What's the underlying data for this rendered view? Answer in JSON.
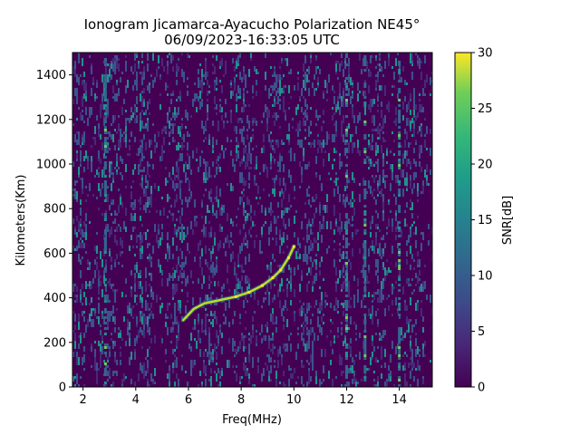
{
  "chart_data": {
    "type": "heatmap",
    "title": "Ionogram Jicamarca-Ayacucho Polarization NE45°",
    "subtitle": "06/09/2023-16:33:05 UTC",
    "xlabel": "Freq(MHz)",
    "ylabel": "Kilometers(Km)",
    "xlim": [
      1.6,
      15.25
    ],
    "ylim": [
      0,
      1500
    ],
    "xticks": [
      "2",
      "4",
      "6",
      "8",
      "10",
      "12",
      "14"
    ],
    "yticks": [
      "0",
      "200",
      "400",
      "600",
      "800",
      "1000",
      "1200",
      "1400"
    ],
    "colorbar": {
      "label": "SNR[dB]",
      "range": [
        0,
        30
      ],
      "ticks": [
        "0",
        "5",
        "10",
        "15",
        "20",
        "25",
        "30"
      ],
      "colormap": "viridis"
    },
    "grid": false,
    "traces": [
      {
        "points": [
          [
            5.8,
            300
          ],
          [
            6.2,
            350
          ],
          [
            6.6,
            375
          ],
          [
            7.2,
            390
          ],
          [
            7.8,
            405
          ],
          [
            8.3,
            425
          ],
          [
            8.8,
            455
          ],
          [
            9.2,
            490
          ],
          [
            9.5,
            525
          ],
          [
            9.8,
            580
          ],
          [
            10.0,
            630
          ]
        ],
        "snr": 26
      }
    ],
    "vertical_lines": [
      {
        "freq": 2.85,
        "snr": 12
      },
      {
        "freq": 12.0,
        "snr": 8
      },
      {
        "freq": 12.7,
        "snr": 9
      },
      {
        "freq": 14.0,
        "snr": 10
      }
    ],
    "colors": {
      "background": "#440154",
      "noise_low": "#3b528b",
      "noise_mid": "#21918c",
      "trace": "#bddf26",
      "trace_peak": "#fde725"
    }
  }
}
